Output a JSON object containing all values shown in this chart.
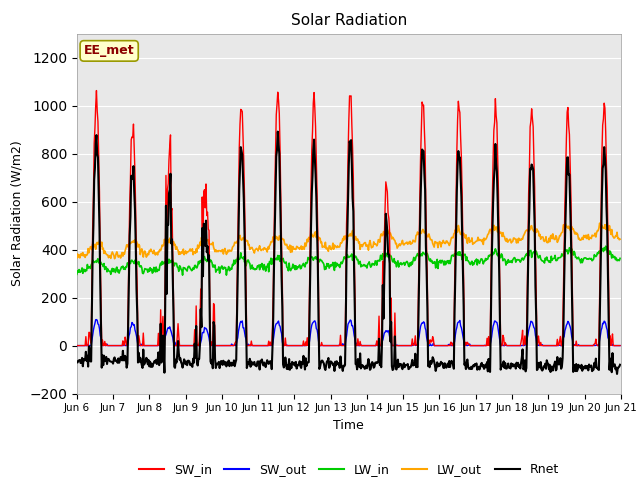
{
  "title": "Solar Radiation",
  "ylabel": "Solar Radiation (W/m2)",
  "xlabel": "Time",
  "ylim": [
    -200,
    1300
  ],
  "yticks": [
    -200,
    0,
    200,
    400,
    600,
    800,
    1000,
    1200
  ],
  "annotation": "EE_met",
  "annotation_color": "#8B0000",
  "annotation_bg": "#FFFFCC",
  "annotation_edge": "#999900",
  "background_color": "#E8E8E8",
  "series_colors": {
    "SW_in": "#FF0000",
    "SW_out": "#0000FF",
    "LW_in": "#00CC00",
    "LW_out": "#FFA500",
    "Rnet": "#000000"
  },
  "n_days": 15,
  "start_day": 6,
  "dt_hours": 0.5,
  "day_peaks_SW_in": [
    1040,
    920,
    760,
    700,
    1000,
    1040,
    1020,
    1050,
    630,
    1000,
    1010,
    1000,
    980,
    970,
    990
  ],
  "LW_in_base": 310,
  "LW_out_base": 375,
  "night_rnet": -75
}
